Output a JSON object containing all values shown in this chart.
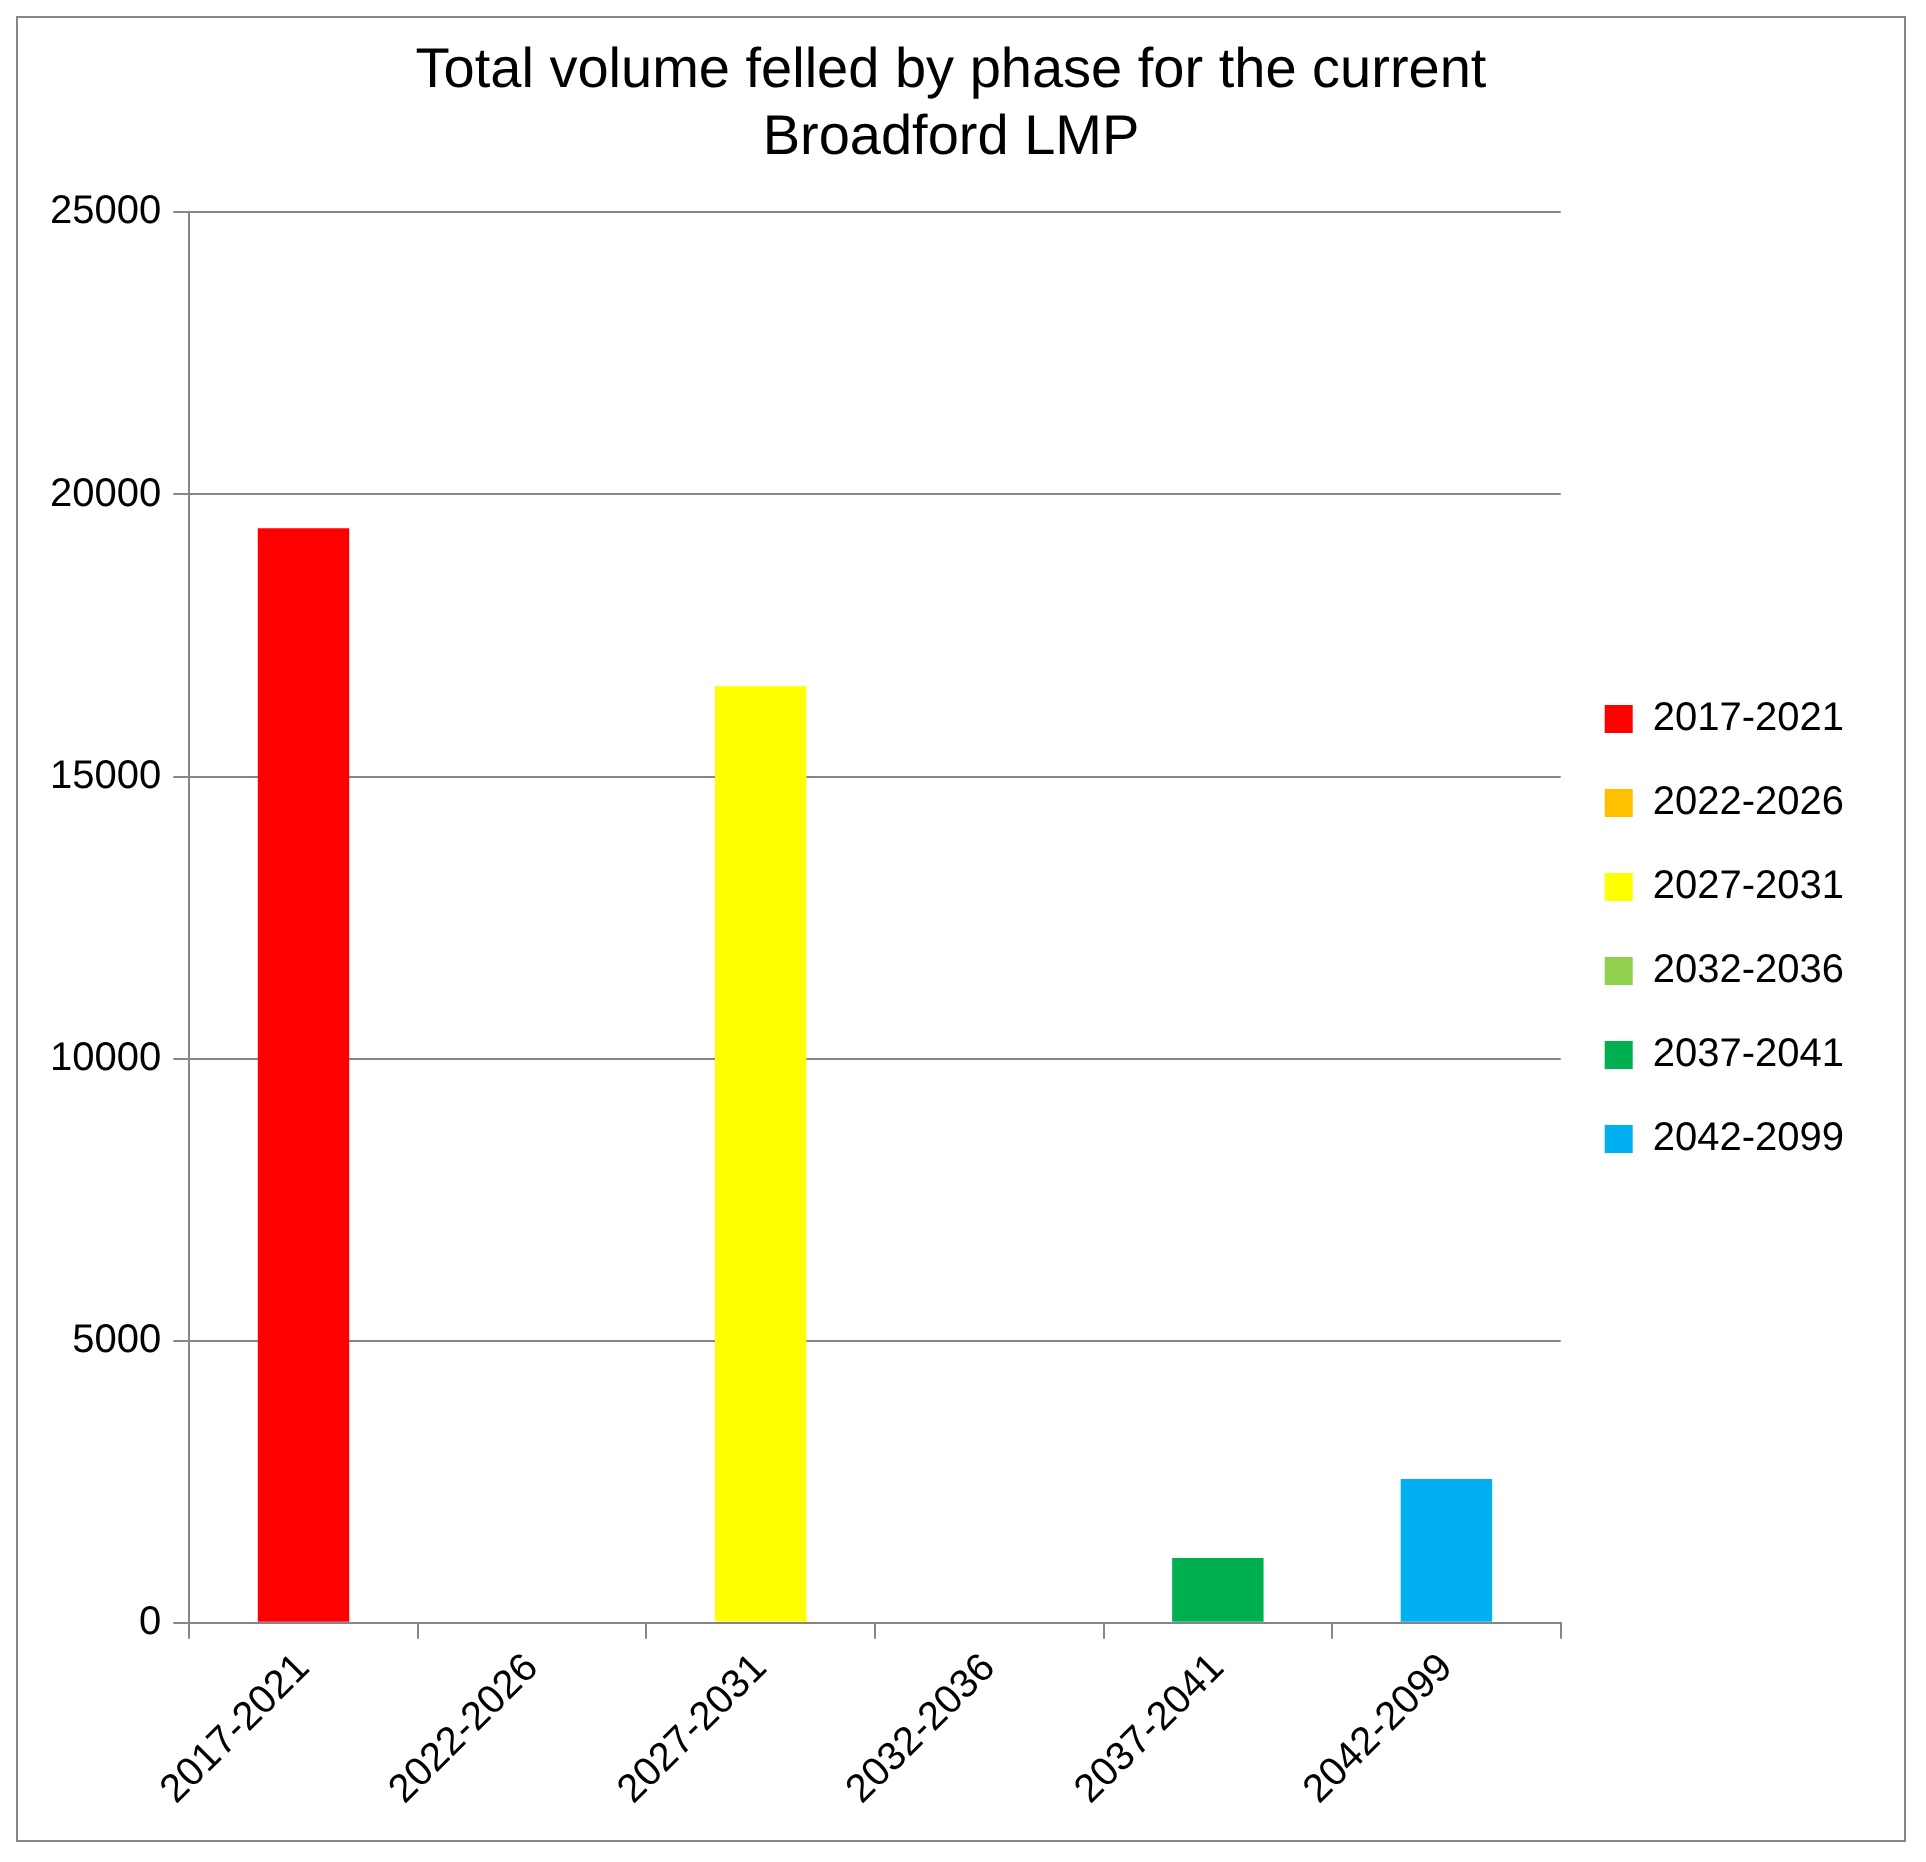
{
  "chart_data": {
    "type": "bar",
    "title": "Total volume felled by phase for the current Broadford LMP",
    "categories": [
      "2017-2021",
      "2022-2026",
      "2027-2031",
      "2032-2036",
      "2037-2041",
      "2042-2099"
    ],
    "series": [
      {
        "name": "2017-2021",
        "color": "#ff0000",
        "values": [
          19400,
          null,
          null,
          null,
          null,
          null
        ]
      },
      {
        "name": "2022-2026",
        "color": "#ffc000",
        "values": [
          null,
          0,
          null,
          null,
          null,
          null
        ]
      },
      {
        "name": "2027-2031",
        "color": "#ffff00",
        "values": [
          null,
          null,
          16600,
          null,
          null,
          null
        ]
      },
      {
        "name": "2032-2036",
        "color": "#92d050",
        "values": [
          null,
          null,
          null,
          0,
          null,
          null
        ]
      },
      {
        "name": "2037-2041",
        "color": "#00b050",
        "values": [
          null,
          null,
          null,
          null,
          1150,
          null
        ]
      },
      {
        "name": "2042-2099",
        "color": "#00b0f0",
        "values": [
          null,
          null,
          null,
          null,
          null,
          2550
        ]
      }
    ],
    "ylim": [
      0,
      25000
    ],
    "yticks": [
      0,
      5000,
      10000,
      15000,
      20000,
      25000
    ],
    "grid": "y",
    "legend": "right"
  }
}
